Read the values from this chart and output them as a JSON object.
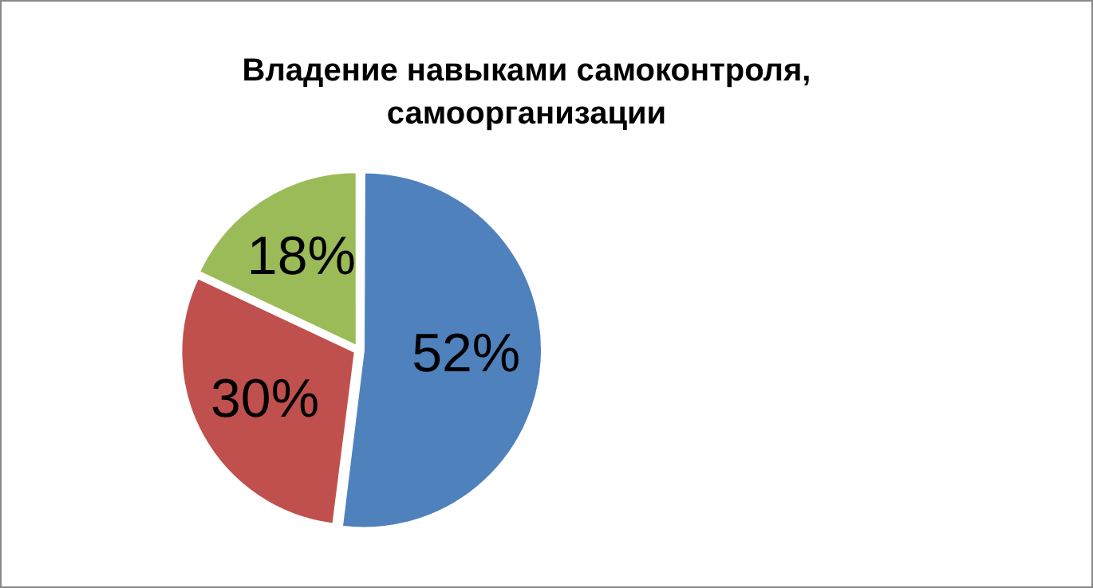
{
  "chart_data": {
    "type": "pie",
    "title": "Владение навыками самоконтроля, самоорганизации",
    "categories": [
      null,
      null,
      null
    ],
    "values": [
      52,
      30,
      18
    ],
    "value_labels": [
      "52%",
      "30%",
      "18%"
    ],
    "colors": [
      "#4f81bd",
      "#c0504d",
      "#9bbb59"
    ],
    "legend": false
  }
}
